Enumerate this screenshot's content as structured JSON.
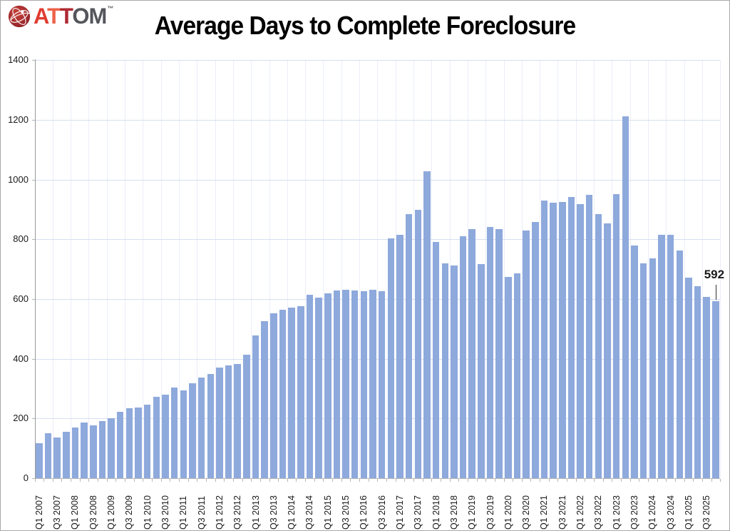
{
  "logo": {
    "brand": "ATTOM",
    "tm": "™",
    "letters": [
      {
        "ch": "A",
        "color": "#e03c31"
      },
      {
        "ch": "T",
        "color": "#ed6248"
      },
      {
        "ch": "T",
        "color": "#ae2a33"
      },
      {
        "ch": "O",
        "color": "#54565b"
      },
      {
        "ch": "M",
        "color": "#54565b"
      }
    ],
    "globe_color_outer": "#8c1f26",
    "globe_color_inner": "#c8423a"
  },
  "header": {
    "title": "Average Days to Complete Foreclosure"
  },
  "chart_data": {
    "type": "bar",
    "title": "Average Days to Complete Foreclosure",
    "xlabel": "",
    "ylabel": "",
    "ylim": [
      0,
      1400
    ],
    "ytick_interval": 200,
    "ytick_labels": [
      "0",
      "200",
      "400",
      "600",
      "800",
      "1000",
      "1200",
      "1400"
    ],
    "grid": "horizontal-major, faint vertical every 2 categories",
    "legend_position": "none",
    "x_label_every_n_categories": 2,
    "bar_color": "#8ea9dc",
    "categories": [
      "Q1 2007",
      "Q2 2007",
      "Q3 2007",
      "Q4 2007",
      "Q1 2008",
      "Q2 2008",
      "Q3 2008",
      "Q4 2008",
      "Q1 2009",
      "Q2 2009",
      "Q3 2009",
      "Q4 2009",
      "Q1 2010",
      "Q2 2010",
      "Q3 2010",
      "Q4 2010",
      "Q1 2011",
      "Q2 2011",
      "Q3 2011",
      "Q4 2011",
      "Q1 2012",
      "Q2 2012",
      "Q3 2012",
      "Q4 2012",
      "Q1 2013",
      "Q2 2013",
      "Q3 2013",
      "Q4 2013",
      "Q1 2014",
      "Q2 2014",
      "Q3 2014",
      "Q4 2014",
      "Q1 2015",
      "Q2 2015",
      "Q3 2015",
      "Q4 2015",
      "Q1 2016",
      "Q2 2016",
      "Q3 2016",
      "Q4 2016",
      "Q1 2017",
      "Q2 2017",
      "Q3 2017",
      "Q4 2017",
      "Q1 2018",
      "Q2 2018",
      "Q3 2018",
      "Q4 2018",
      "Q1 2019",
      "Q2 2019",
      "Q3 2019",
      "Q4 2019",
      "Q1 2020",
      "Q2 2020",
      "Q3 2020",
      "Q4 2020",
      "Q1 2021",
      "Q2 2021",
      "Q3 2021",
      "Q4 2021",
      "Q1 2022",
      "Q2 2022",
      "Q3 2022",
      "Q4 2022",
      "Q1 2023",
      "Q2 2023",
      "Q3 2023",
      "Q4 2023",
      "Q1 2024",
      "Q2 2024",
      "Q3 2024",
      "Q4 2024",
      "Q1 2025",
      "Q2 2025",
      "Q3 2025",
      "Q4 2025"
    ],
    "values": [
      117,
      151,
      136,
      155,
      170,
      186,
      178,
      191,
      201,
      222,
      233,
      236,
      246,
      272,
      280,
      303,
      294,
      318,
      336,
      348,
      370,
      378,
      382,
      414,
      477,
      526,
      551,
      564,
      572,
      577,
      615,
      604,
      620,
      629,
      630,
      629,
      625,
      631,
      625,
      803,
      814,
      883,
      899,
      1027,
      791,
      720,
      713,
      811,
      835,
      716,
      841,
      834,
      673,
      685,
      830,
      857,
      930,
      922,
      924,
      941,
      917,
      948,
      885,
      852,
      950,
      1212,
      778,
      720,
      736,
      815,
      815,
      762,
      671,
      643,
      608,
      592
    ],
    "annotation": {
      "text": "592",
      "category": "Q4 2025",
      "value": 592
    },
    "colors": {
      "bar": "#8ea9dc",
      "grid_h": "#d6e0f0",
      "grid_v": "#eaeef8",
      "axis": "#b7b7b7",
      "y_axis": "#9a9a9a",
      "tick": "#b7b7b7",
      "text": "#1a1a1a",
      "annotation": "#1a1a1a"
    }
  }
}
